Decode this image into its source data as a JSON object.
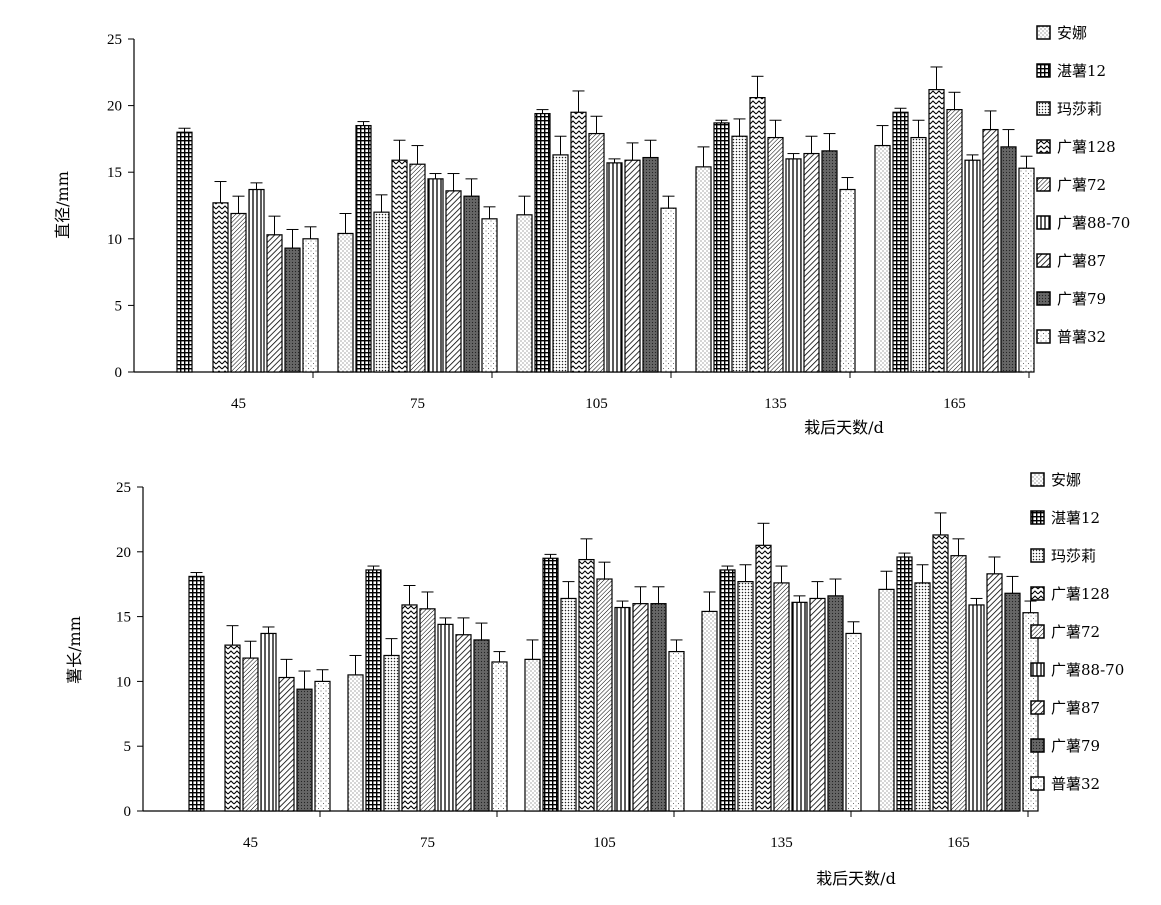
{
  "chart_data": [
    {
      "type": "bar",
      "ylabel": "直径/mm",
      "xlabel": "栽后天数/d",
      "ylim": [
        0,
        25
      ],
      "yticks": [
        0,
        5,
        10,
        15,
        20,
        25
      ],
      "categories": [
        "45",
        "75",
        "105",
        "135",
        "165"
      ],
      "legend_position": "right",
      "error_bars": true,
      "series": [
        {
          "name": "安娜",
          "pattern": "dots-light",
          "values": [
            null,
            10.4,
            11.8,
            15.4,
            17.0
          ],
          "errors": [
            null,
            1.5,
            1.4,
            1.5,
            1.5
          ]
        },
        {
          "name": "湛薯12",
          "pattern": "grid",
          "values": [
            18.0,
            18.5,
            19.4,
            18.7,
            19.5
          ],
          "errors": [
            0.3,
            0.3,
            0.3,
            0.2,
            0.3
          ]
        },
        {
          "name": "玛莎莉",
          "pattern": "dots-dense",
          "values": [
            null,
            12.0,
            16.3,
            17.7,
            17.6
          ],
          "errors": [
            null,
            1.3,
            1.4,
            1.3,
            1.3
          ]
        },
        {
          "name": "广薯128",
          "pattern": "zigzag",
          "values": [
            12.7,
            15.9,
            19.5,
            20.6,
            21.2
          ],
          "errors": [
            1.6,
            1.5,
            1.6,
            1.6,
            1.7
          ]
        },
        {
          "name": "广薯72",
          "pattern": "diagonal-fine",
          "values": [
            11.9,
            15.6,
            17.9,
            17.6,
            19.7
          ],
          "errors": [
            1.3,
            1.4,
            1.3,
            1.3,
            1.3
          ]
        },
        {
          "name": "广薯88-70",
          "pattern": "vertical",
          "values": [
            13.7,
            14.5,
            15.7,
            16.0,
            15.9
          ],
          "errors": [
            0.5,
            0.4,
            0.3,
            0.4,
            0.4
          ]
        },
        {
          "name": "广薯87",
          "pattern": "diagonal-wide",
          "values": [
            10.3,
            13.6,
            15.9,
            16.4,
            18.2
          ],
          "errors": [
            1.4,
            1.3,
            1.3,
            1.3,
            1.4
          ]
        },
        {
          "name": "广薯79",
          "pattern": "dark-dots",
          "values": [
            9.3,
            13.2,
            16.1,
            16.6,
            16.9
          ],
          "errors": [
            1.4,
            1.3,
            1.3,
            1.3,
            1.3
          ]
        },
        {
          "name": "普薯32",
          "pattern": "sparse-dots",
          "values": [
            10.0,
            11.5,
            12.3,
            13.7,
            15.3
          ],
          "errors": [
            0.9,
            0.9,
            0.9,
            0.9,
            0.9
          ]
        }
      ]
    },
    {
      "type": "bar",
      "ylabel": "薯长/mm",
      "xlabel": "栽后天数/d",
      "ylim": [
        0,
        25
      ],
      "yticks": [
        0,
        5,
        10,
        15,
        20,
        25
      ],
      "categories": [
        "45",
        "75",
        "105",
        "135",
        "165"
      ],
      "legend_position": "right",
      "error_bars": true,
      "series": [
        {
          "name": "安娜",
          "pattern": "dots-light",
          "values": [
            null,
            10.5,
            11.7,
            15.4,
            17.1
          ],
          "errors": [
            null,
            1.5,
            1.5,
            1.5,
            1.4
          ]
        },
        {
          "name": "湛薯12",
          "pattern": "grid",
          "values": [
            18.1,
            18.6,
            19.5,
            18.6,
            19.6
          ],
          "errors": [
            0.3,
            0.3,
            0.3,
            0.3,
            0.3
          ]
        },
        {
          "name": "玛莎莉",
          "pattern": "dots-dense",
          "values": [
            null,
            12.0,
            16.4,
            17.7,
            17.6
          ],
          "errors": [
            null,
            1.3,
            1.3,
            1.3,
            1.4
          ]
        },
        {
          "name": "广薯128",
          "pattern": "zigzag",
          "values": [
            12.8,
            15.9,
            19.4,
            20.5,
            21.3
          ],
          "errors": [
            1.5,
            1.5,
            1.6,
            1.7,
            1.7
          ]
        },
        {
          "name": "广薯72",
          "pattern": "diagonal-fine",
          "values": [
            11.8,
            15.6,
            17.9,
            17.6,
            19.7
          ],
          "errors": [
            1.3,
            1.3,
            1.3,
            1.3,
            1.3
          ]
        },
        {
          "name": "广薯88-70",
          "pattern": "vertical",
          "values": [
            13.7,
            14.4,
            15.7,
            16.1,
            15.9
          ],
          "errors": [
            0.5,
            0.5,
            0.5,
            0.5,
            0.5
          ]
        },
        {
          "name": "广薯87",
          "pattern": "diagonal-wide",
          "values": [
            10.3,
            13.6,
            16.0,
            16.4,
            18.3
          ],
          "errors": [
            1.4,
            1.3,
            1.3,
            1.3,
            1.3
          ]
        },
        {
          "name": "广薯79",
          "pattern": "dark-dots",
          "values": [
            9.4,
            13.2,
            16.0,
            16.6,
            16.8
          ],
          "errors": [
            1.4,
            1.3,
            1.3,
            1.3,
            1.3
          ]
        },
        {
          "name": "普薯32",
          "pattern": "sparse-dots",
          "values": [
            10.0,
            11.5,
            12.3,
            13.7,
            15.3
          ],
          "errors": [
            0.9,
            0.8,
            0.9,
            0.9,
            0.9
          ]
        }
      ]
    }
  ]
}
